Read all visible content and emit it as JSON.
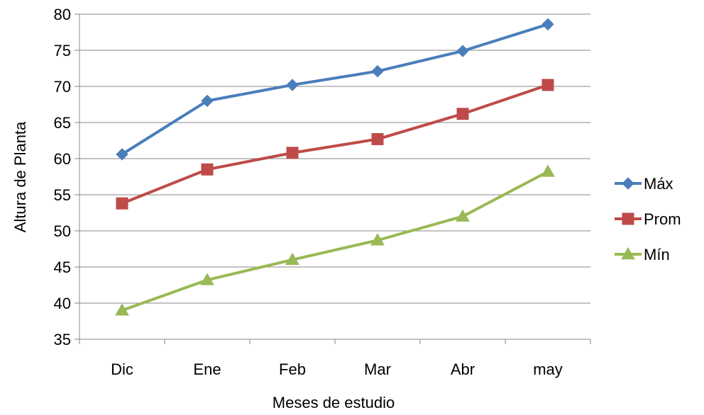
{
  "chart_data": {
    "type": "line",
    "title": "",
    "xlabel": "Meses de estudio",
    "ylabel": "Altura de Planta",
    "categories": [
      "Dic",
      "Ene",
      "Feb",
      "Mar",
      "Abr",
      "may"
    ],
    "ylim": [
      35,
      80
    ],
    "yticks": [
      "35",
      "40",
      "45",
      "50",
      "55",
      "60",
      "65",
      "70",
      "75",
      "80"
    ],
    "grid": true,
    "legend_position": "right",
    "series": [
      {
        "name": "Máx",
        "color": "#4a7ebb",
        "marker": "diamond",
        "values": [
          60.6,
          68.0,
          70.2,
          72.1,
          74.9,
          78.6
        ]
      },
      {
        "name": "Prom",
        "color": "#be4b48",
        "marker": "square",
        "values": [
          53.8,
          58.5,
          60.8,
          62.7,
          66.2,
          70.2
        ]
      },
      {
        "name": "Mín",
        "color": "#98b954",
        "marker": "triangle",
        "values": [
          39.0,
          43.2,
          46.0,
          48.7,
          52.0,
          58.2
        ]
      }
    ]
  }
}
